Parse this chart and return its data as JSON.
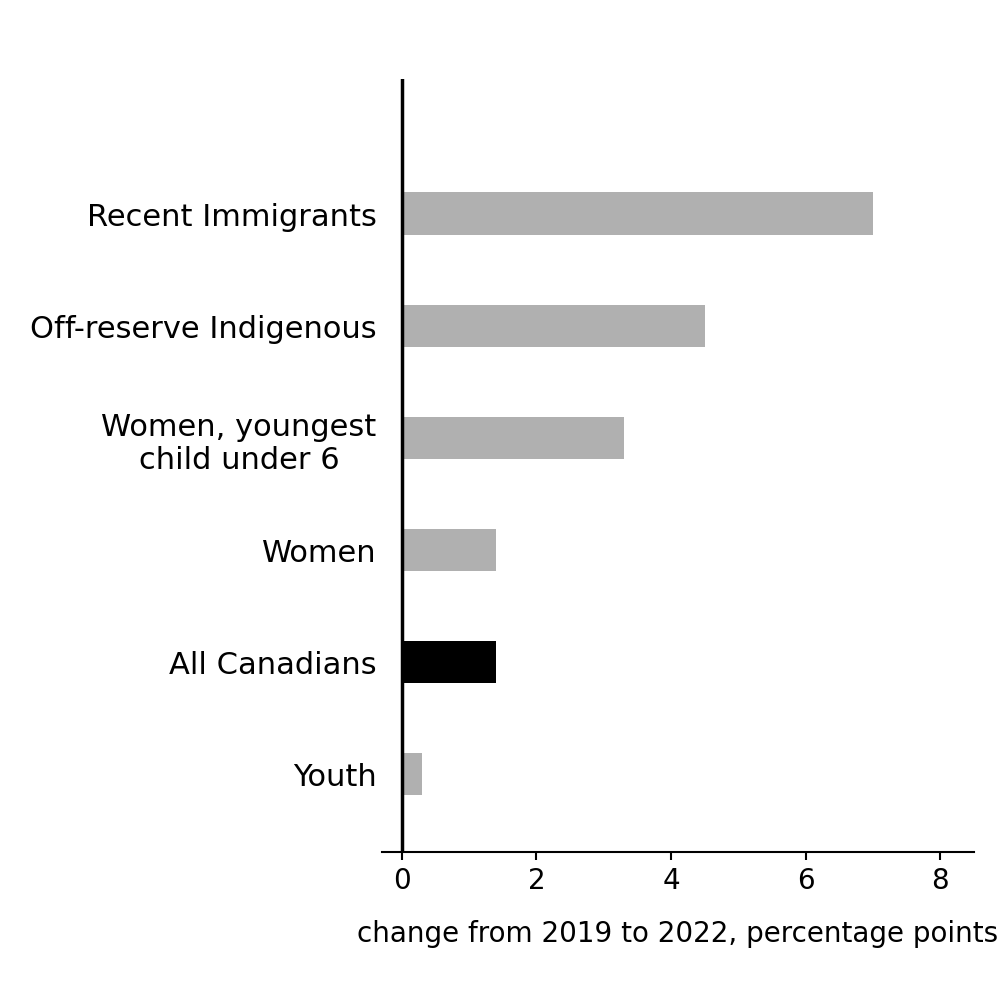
{
  "categories": [
    "Youth",
    "All Canadians",
    "Women",
    "Women, youngest\nchild under 6",
    "Off-reserve Indigenous",
    "Recent Immigrants"
  ],
  "values": [
    0.3,
    1.4,
    1.4,
    3.3,
    4.5,
    7.0
  ],
  "bar_colors": [
    "#b0b0b0",
    "#000000",
    "#b0b0b0",
    "#b0b0b0",
    "#b0b0b0",
    "#b0b0b0"
  ],
  "xlabel": "change from 2019 to 2022, percentage points",
  "xlim": [
    -0.3,
    8.5
  ],
  "xticks": [
    0,
    2,
    4,
    6,
    8
  ],
  "background_color": "#ffffff",
  "bar_height": 0.38,
  "xlabel_fontsize": 20,
  "tick_fontsize": 20,
  "label_fontsize": 22
}
